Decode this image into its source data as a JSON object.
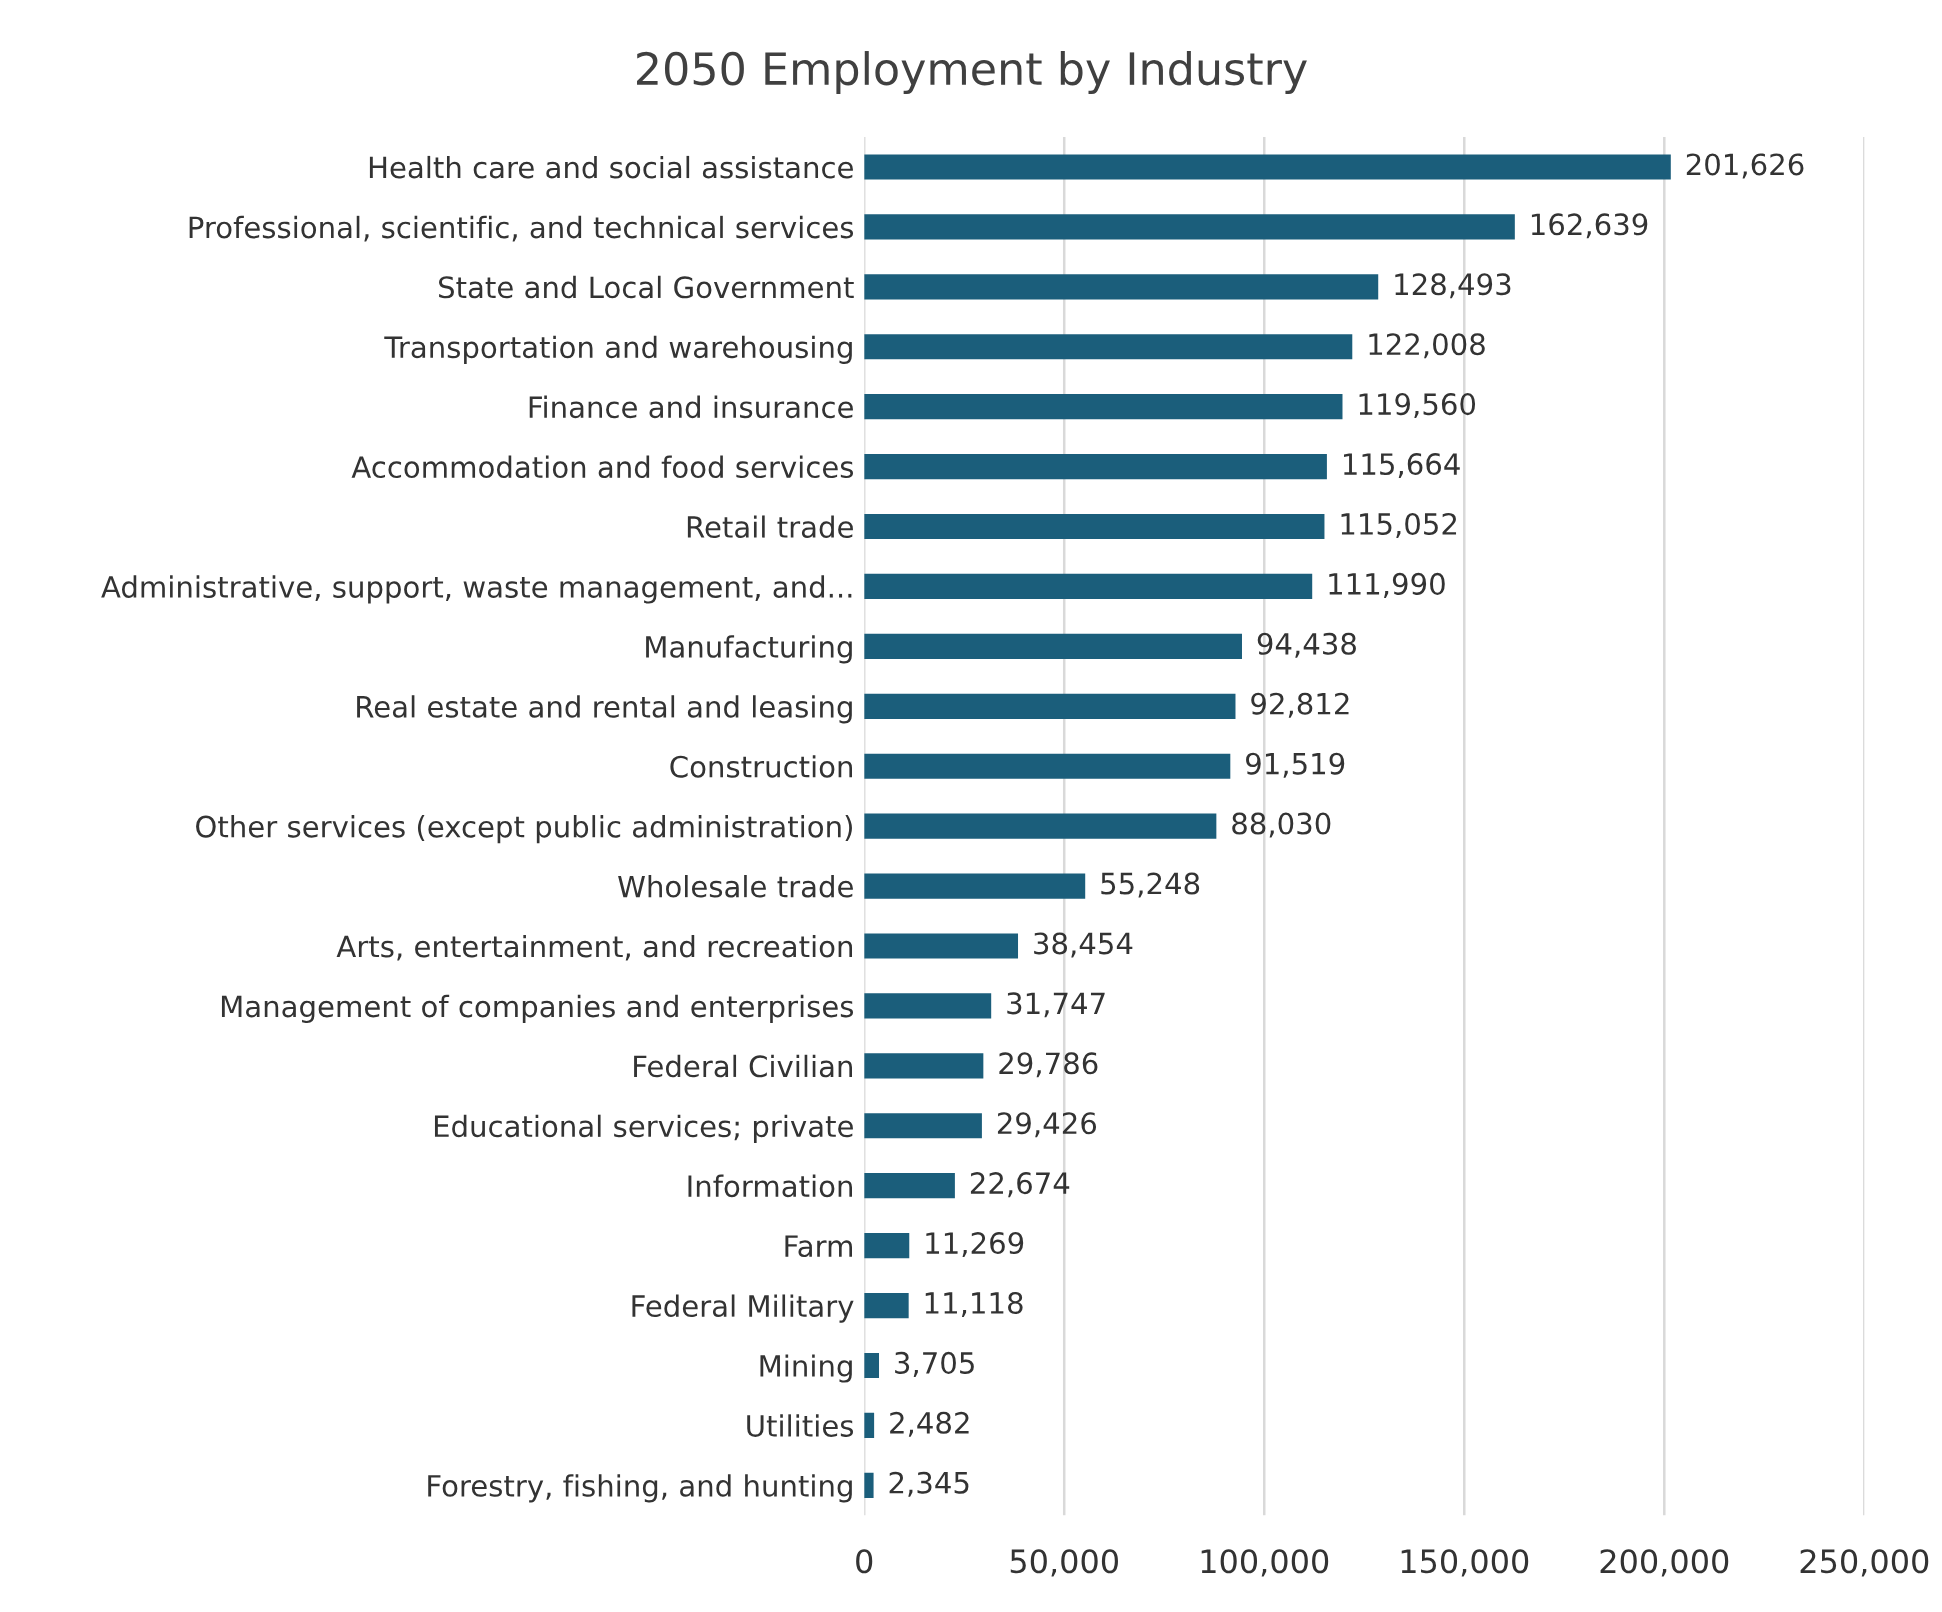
{
  "chart_data": {
    "type": "bar",
    "orientation": "horizontal",
    "title": "2050 Employment by Industry",
    "categories": [
      "Health care and social assistance",
      "Professional, scientific, and technical services",
      "State and Local Government",
      "Transportation and warehousing",
      "Finance and insurance",
      "Accommodation and food services",
      "Retail trade",
      "Administrative, support, waste management, and...",
      "Manufacturing",
      "Real estate and rental and leasing",
      "Construction",
      "Other services (except public administration)",
      "Wholesale trade",
      "Arts, entertainment, and recreation",
      "Management of companies and enterprises",
      "Federal Civilian",
      "Educational services; private",
      "Information",
      "Farm",
      "Federal Military",
      "Mining",
      "Utilities",
      "Forestry, fishing, and hunting"
    ],
    "values": [
      201626,
      162639,
      128493,
      122008,
      119560,
      115664,
      115052,
      111990,
      94438,
      92812,
      91519,
      88030,
      55248,
      38454,
      31747,
      29786,
      29426,
      22674,
      11269,
      11118,
      3705,
      2482,
      2345
    ],
    "value_labels": [
      "201,626",
      "162,639",
      "128,493",
      "122,008",
      "119,560",
      "115,664",
      "115,052",
      "111,990",
      "94,438",
      "92,812",
      "91,519",
      "88,030",
      "55,248",
      "38,454",
      "31,747",
      "29,786",
      "29,426",
      "22,674",
      "11,269",
      "11,118",
      "3,705",
      "2,482",
      "2,345"
    ],
    "color": "#1b5e7b",
    "xlim": [
      0,
      250000
    ],
    "xticks": [
      0,
      {
        "value": 50000,
        "label": "50,000"
      },
      {
        "value": 100000,
        "label": "100,000"
      },
      {
        "value": 150000,
        "label": "150,000"
      },
      {
        "value": 200000,
        "label": "200,000"
      },
      {
        "value": 250000,
        "label": "250,000"
      }
    ],
    "grid": "x"
  }
}
